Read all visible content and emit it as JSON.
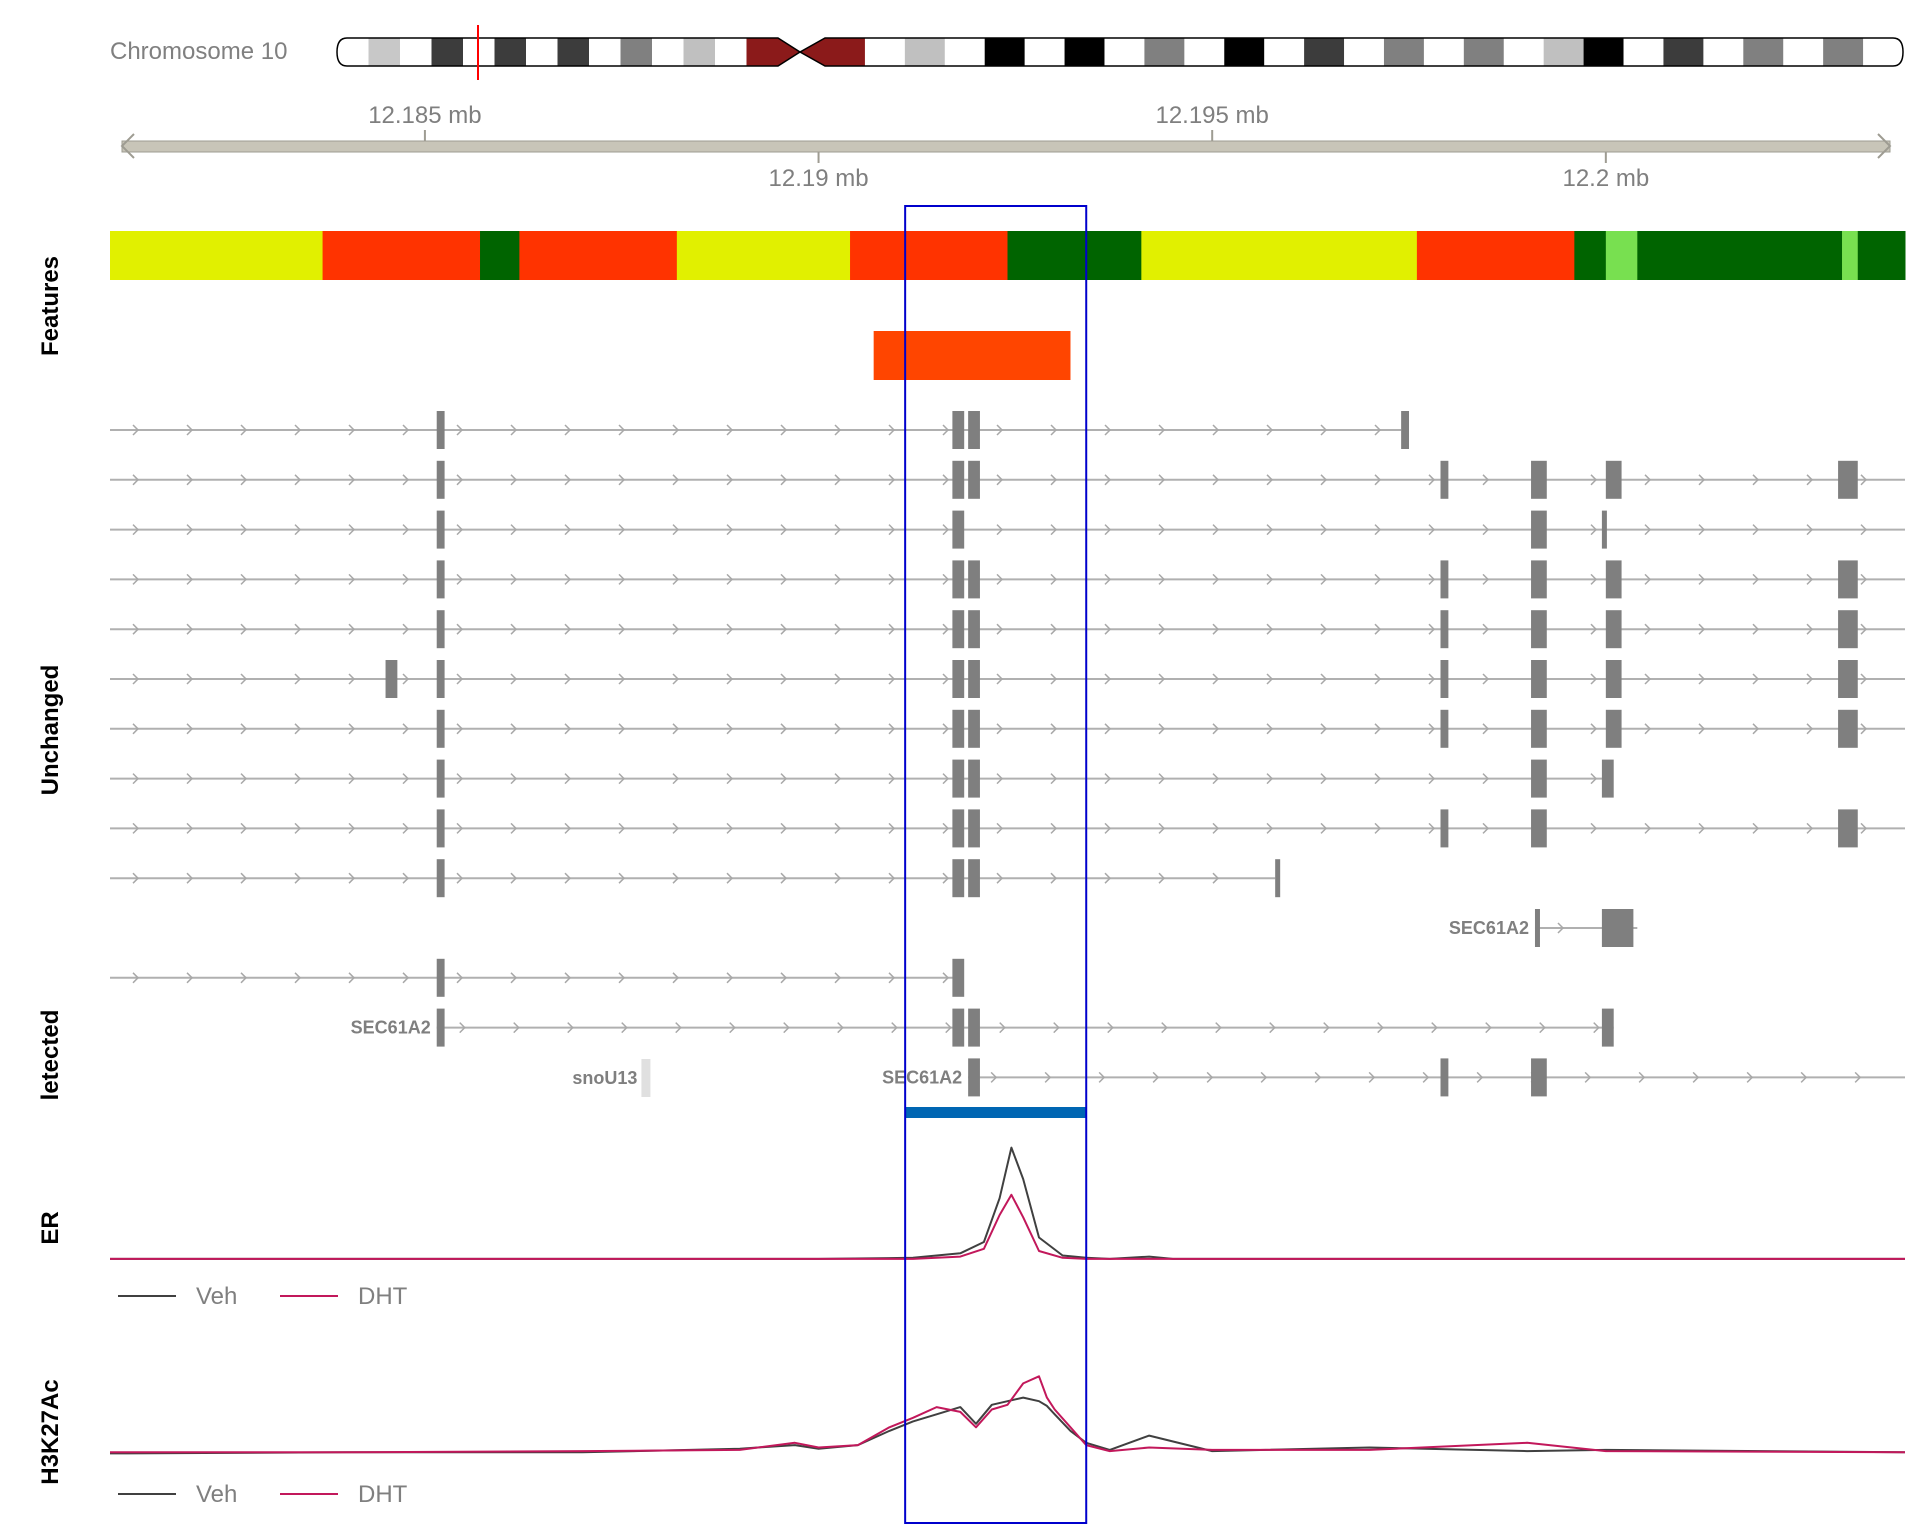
{
  "chart_data": {
    "type": "genome-track",
    "ideogram": {
      "label": "Chromosome 10",
      "bands": [
        "#ffffff",
        "#c8c8c8",
        "#ffffff",
        "#3c3c3c",
        "#ffffff",
        "#3c3c3c",
        "#ffffff",
        "#3c3c3c",
        "#ffffff",
        "#808080",
        "#ffffff",
        "#c0c0c0",
        "#ffffff",
        "#8b1a1a",
        "#8b1a1a",
        "#ffffff",
        "#c0c0c0",
        "#ffffff",
        "#000000",
        "#ffffff",
        "#000000",
        "#ffffff",
        "#808080",
        "#ffffff",
        "#000000",
        "#ffffff",
        "#3c3c3c",
        "#ffffff",
        "#808080",
        "#ffffff",
        "#808080",
        "#ffffff",
        "#c0c0c0",
        "#000000",
        "#ffffff",
        "#3c3c3c",
        "#ffffff",
        "#808080",
        "#ffffff",
        "#808080",
        "#ffffff"
      ],
      "marker_color": "#ff0000"
    },
    "axis": {
      "xlim": [
        12.181,
        12.2038
      ],
      "unit": "mb",
      "ticks_above": [
        {
          "value": 12.185,
          "label": "12.185 mb"
        },
        {
          "value": 12.195,
          "label": "12.195 mb"
        }
      ],
      "ticks_below": [
        {
          "value": 12.19,
          "label": "12.19 mb"
        },
        {
          "value": 12.2,
          "label": "12.2 mb"
        }
      ]
    },
    "highlight": {
      "start": 12.1911,
      "end": 12.1934,
      "color": "#0000cc"
    },
    "tracks": {
      "features_label": "Features",
      "unchanged_label": "Unchanged",
      "detected_label": "letected",
      "er_label": "ER",
      "h3k27ac_label": "H3K27Ac"
    },
    "chromatin_states": [
      {
        "start": 12.181,
        "end": 12.1837,
        "color": "#e1f000"
      },
      {
        "start": 12.1837,
        "end": 12.1857,
        "color": "#ff3300"
      },
      {
        "start": 12.1857,
        "end": 12.1862,
        "color": "#006400"
      },
      {
        "start": 12.1862,
        "end": 12.1882,
        "color": "#ff3300"
      },
      {
        "start": 12.1882,
        "end": 12.1904,
        "color": "#e1f000"
      },
      {
        "start": 12.1904,
        "end": 12.1924,
        "color": "#ff3300"
      },
      {
        "start": 12.1924,
        "end": 12.1941,
        "color": "#006400"
      },
      {
        "start": 12.1941,
        "end": 12.1976,
        "color": "#e1f000"
      },
      {
        "start": 12.1976,
        "end": 12.1996,
        "color": "#ff3300"
      },
      {
        "start": 12.1996,
        "end": 12.2,
        "color": "#006400"
      },
      {
        "start": 12.2,
        "end": 12.2004,
        "color": "#78e050"
      },
      {
        "start": 12.2004,
        "end": 12.203,
        "color": "#006400"
      },
      {
        "start": 12.203,
        "end": 12.2032,
        "color": "#78e050"
      },
      {
        "start": 12.2032,
        "end": 12.2038,
        "color": "#006400"
      }
    ],
    "region": {
      "start": 12.1907,
      "end": 12.1932,
      "color": "#ff4500"
    },
    "transcripts": [
      {
        "start": 12.181,
        "end": 12.1974,
        "exons": [
          [
            12.18515,
            12.18525
          ],
          [
            12.1917,
            12.19185
          ],
          [
            12.1919,
            12.19205
          ],
          [
            12.1974,
            12.1975
          ]
        ],
        "label": ""
      },
      {
        "start": 12.181,
        "end": 12.2038,
        "exons": [
          [
            12.18515,
            12.18525
          ],
          [
            12.1917,
            12.19185
          ],
          [
            12.1919,
            12.19205
          ],
          [
            12.1979,
            12.198
          ],
          [
            12.19905,
            12.19925
          ],
          [
            12.2,
            12.2002
          ],
          [
            12.20295,
            12.2032
          ]
        ],
        "label": ""
      },
      {
        "start": 12.181,
        "end": 12.2038,
        "exons": [
          [
            12.18515,
            12.18525
          ],
          [
            12.1917,
            12.19185
          ],
          [
            12.19905,
            12.19925
          ],
          [
            12.19995,
            12.2
          ]
        ],
        "label": ""
      },
      {
        "start": 12.181,
        "end": 12.2038,
        "exons": [
          [
            12.18515,
            12.18525
          ],
          [
            12.1917,
            12.19185
          ],
          [
            12.1919,
            12.19205
          ],
          [
            12.1979,
            12.198
          ],
          [
            12.19905,
            12.19925
          ],
          [
            12.2,
            12.2002
          ],
          [
            12.20295,
            12.2032
          ]
        ],
        "label": ""
      },
      {
        "start": 12.181,
        "end": 12.2038,
        "exons": [
          [
            12.18515,
            12.18525
          ],
          [
            12.1917,
            12.19185
          ],
          [
            12.1919,
            12.19205
          ],
          [
            12.1979,
            12.198
          ],
          [
            12.19905,
            12.19925
          ],
          [
            12.2,
            12.2002
          ],
          [
            12.20295,
            12.2032
          ]
        ],
        "label": ""
      },
      {
        "start": 12.181,
        "end": 12.2038,
        "exons": [
          [
            12.1845,
            12.18465
          ],
          [
            12.18515,
            12.18525
          ],
          [
            12.1917,
            12.19185
          ],
          [
            12.1919,
            12.19205
          ],
          [
            12.1979,
            12.198
          ],
          [
            12.19905,
            12.19925
          ],
          [
            12.2,
            12.2002
          ],
          [
            12.20295,
            12.2032
          ]
        ],
        "label": ""
      },
      {
        "start": 12.181,
        "end": 12.2038,
        "exons": [
          [
            12.18515,
            12.18525
          ],
          [
            12.1917,
            12.19185
          ],
          [
            12.1919,
            12.19205
          ],
          [
            12.1979,
            12.198
          ],
          [
            12.19905,
            12.19925
          ],
          [
            12.2,
            12.2002
          ],
          [
            12.20295,
            12.2032
          ]
        ],
        "label": ""
      },
      {
        "start": 12.181,
        "end": 12.2,
        "exons": [
          [
            12.18515,
            12.18525
          ],
          [
            12.1917,
            12.19185
          ],
          [
            12.1919,
            12.19205
          ],
          [
            12.19905,
            12.19925
          ],
          [
            12.19995,
            12.2001
          ]
        ],
        "label": ""
      },
      {
        "start": 12.181,
        "end": 12.2038,
        "exons": [
          [
            12.18515,
            12.18525
          ],
          [
            12.1917,
            12.19185
          ],
          [
            12.1919,
            12.19205
          ],
          [
            12.1979,
            12.198
          ],
          [
            12.19905,
            12.19925
          ],
          [
            12.20295,
            12.2032
          ]
        ],
        "label": ""
      },
      {
        "start": 12.181,
        "end": 12.1958,
        "exons": [
          [
            12.18515,
            12.18525
          ],
          [
            12.1917,
            12.19185
          ],
          [
            12.1919,
            12.19205
          ],
          [
            12.1958,
            12.19585
          ]
        ],
        "label": ""
      },
      {
        "start": 12.1991,
        "end": 12.2004,
        "exons": [
          [
            12.1991,
            12.19915
          ],
          [
            12.19995,
            12.20035
          ]
        ],
        "label": "SEC61A2"
      },
      {
        "start": 12.181,
        "end": 12.1918,
        "exons": [
          [
            12.18515,
            12.18525
          ],
          [
            12.1917,
            12.19185
          ]
        ],
        "label": ""
      },
      {
        "start": 12.18515,
        "end": 12.2001,
        "exons": [
          [
            12.18515,
            12.18525
          ],
          [
            12.1917,
            12.19185
          ],
          [
            12.1919,
            12.19205
          ],
          [
            12.19995,
            12.2001
          ]
        ],
        "label": "SEC61A2"
      },
      {
        "start": 12.1919,
        "end": 12.2038,
        "exons": [
          [
            12.1919,
            12.19205
          ],
          [
            12.1979,
            12.198
          ],
          [
            12.19905,
            12.19925
          ]
        ],
        "label": "SEC61A2"
      }
    ],
    "detected": [
      {
        "start": 12.18775,
        "end": 12.18785,
        "label": "snoU13"
      }
    ],
    "er_peak": {
      "start": 12.1911,
      "end": 12.1934,
      "color": "#0066b3"
    },
    "legend": [
      {
        "name": "Veh",
        "color": "#404040"
      },
      {
        "name": "DHT",
        "color": "#c2185b"
      }
    ],
    "er_signal": {
      "x": [
        12.181,
        12.186,
        12.19,
        12.1912,
        12.1918,
        12.1921,
        12.1923,
        12.19245,
        12.1926,
        12.1928,
        12.1931,
        12.1934,
        12.1937,
        12.1942,
        12.1945,
        12.2,
        12.2038
      ],
      "series": [
        {
          "name": "Veh",
          "values": [
            0.01,
            0.01,
            0.01,
            0.02,
            0.06,
            0.16,
            0.55,
            1.0,
            0.72,
            0.2,
            0.04,
            0.02,
            0.01,
            0.03,
            0.01,
            0.01,
            0.01
          ]
        },
        {
          "name": "DHT",
          "values": [
            0.01,
            0.01,
            0.01,
            0.01,
            0.03,
            0.1,
            0.4,
            0.58,
            0.38,
            0.08,
            0.02,
            0.01,
            0.01,
            0.01,
            0.01,
            0.01,
            0.01
          ]
        }
      ],
      "ylim": [
        0,
        1.05
      ]
    },
    "h3k27ac_signal": {
      "x": [
        12.181,
        12.184,
        12.187,
        12.189,
        12.1897,
        12.19,
        12.1905,
        12.1909,
        12.1912,
        12.1915,
        12.1918,
        12.192,
        12.1922,
        12.1924,
        12.1926,
        12.1928,
        12.1929,
        12.193,
        12.1932,
        12.1934,
        12.1937,
        12.1942,
        12.195,
        12.197,
        12.199,
        12.2,
        12.2038
      ],
      "series": [
        {
          "name": "Veh",
          "values": [
            0.03,
            0.04,
            0.04,
            0.07,
            0.1,
            0.07,
            0.1,
            0.22,
            0.3,
            0.36,
            0.42,
            0.28,
            0.44,
            0.47,
            0.5,
            0.47,
            0.43,
            0.36,
            0.22,
            0.12,
            0.06,
            0.18,
            0.05,
            0.08,
            0.05,
            0.06,
            0.04
          ]
        },
        {
          "name": "DHT",
          "values": [
            0.04,
            0.04,
            0.05,
            0.06,
            0.12,
            0.08,
            0.1,
            0.25,
            0.33,
            0.42,
            0.38,
            0.25,
            0.4,
            0.44,
            0.62,
            0.68,
            0.5,
            0.4,
            0.25,
            0.1,
            0.05,
            0.08,
            0.06,
            0.06,
            0.12,
            0.05,
            0.04
          ]
        }
      ],
      "ylim": [
        0,
        0.8
      ]
    }
  }
}
